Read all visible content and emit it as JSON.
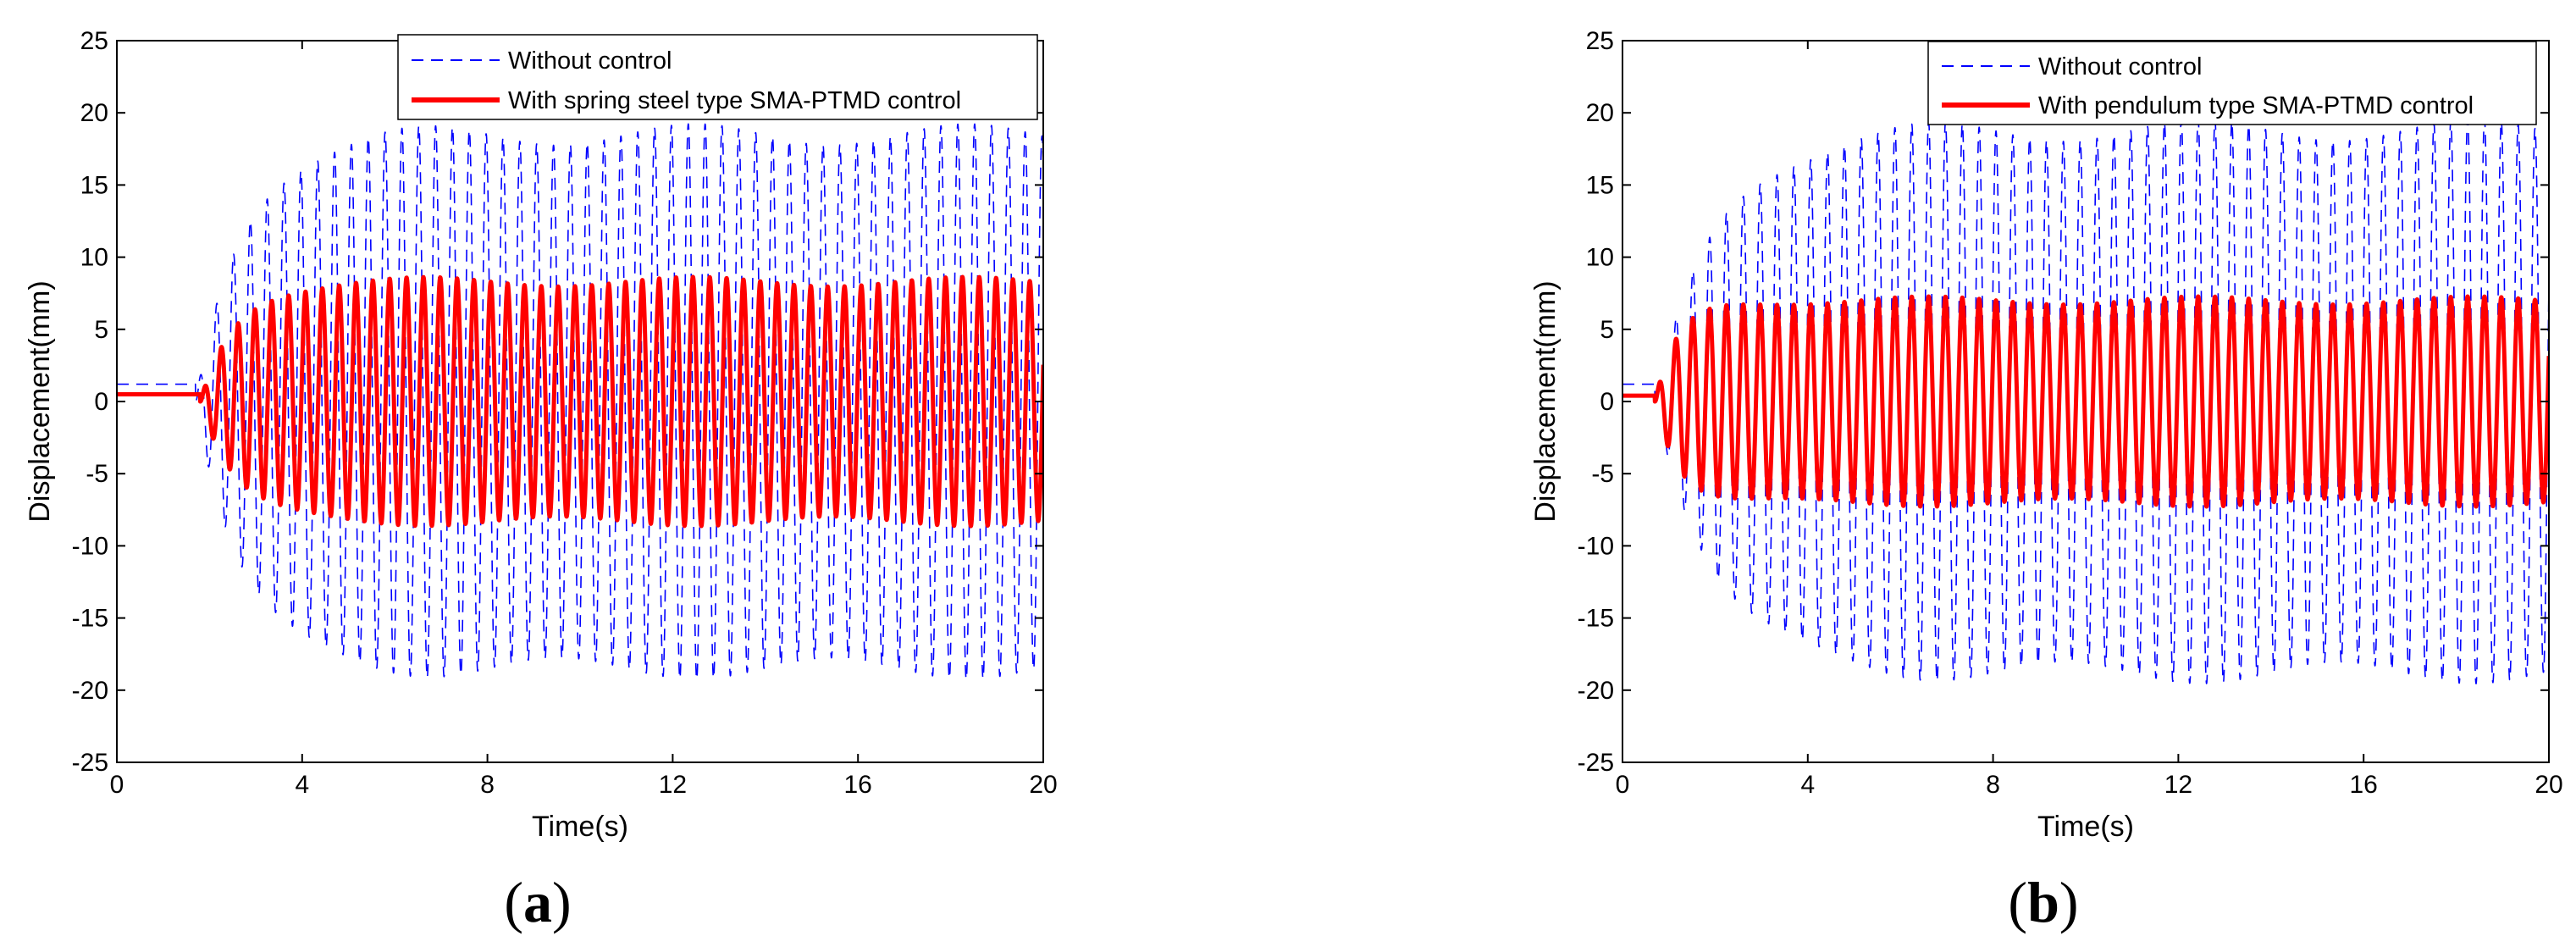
{
  "figure": {
    "panels": [
      {
        "caption_open": "(",
        "caption_letter": "a",
        "caption_close": ")"
      },
      {
        "caption_open": "(",
        "caption_letter": "b",
        "caption_close": ")"
      }
    ]
  },
  "chart_data": [
    {
      "type": "line",
      "title": "",
      "xlabel": "Time(s)",
      "ylabel": "Displacement(mm)",
      "xlim": [
        0,
        20
      ],
      "ylim": [
        -25,
        25
      ],
      "xticks": [
        0,
        4,
        8,
        12,
        16,
        20
      ],
      "yticks": [
        -25,
        -20,
        -15,
        -10,
        -5,
        0,
        5,
        10,
        15,
        20,
        25
      ],
      "legend_position": "top-right",
      "series": [
        {
          "name": "Without control",
          "style": "dashed",
          "color": "#0000ff",
          "model": {
            "initial_offset": 1.2,
            "onset_s": 1.7,
            "steady_amplitude": 18.5,
            "growth_tau_s": 1.0,
            "frequency_hz": 2.75
          }
        },
        {
          "name": "With spring steel type SMA-PTMD control",
          "style": "solid",
          "color": "#ff0000",
          "model": {
            "initial_offset": 0.5,
            "onset_s": 1.8,
            "steady_amplitude": 8.3,
            "growth_tau_s": 0.75,
            "frequency_hz": 2.75
          }
        }
      ]
    },
    {
      "type": "line",
      "title": "",
      "xlabel": "Time(s)",
      "ylabel": "Displacement(mm)",
      "xlim": [
        0,
        20
      ],
      "ylim": [
        -25,
        25
      ],
      "xticks": [
        0,
        4,
        8,
        12,
        16,
        20
      ],
      "yticks": [
        -25,
        -20,
        -15,
        -10,
        -5,
        0,
        5,
        10,
        15,
        20,
        25
      ],
      "legend_position": "top-right",
      "series": [
        {
          "name": "Without control",
          "style": "dashed",
          "color": "#0000ff",
          "model": {
            "initial_offset": 1.2,
            "onset_s": 0.7,
            "steady_amplitude": 18.8,
            "growth_tau_s": 1.3,
            "frequency_hz": 2.75
          }
        },
        {
          "name": "With pendulum type SMA-PTMD control",
          "style": "solid",
          "color": "#ff0000",
          "model": {
            "initial_offset": 0.4,
            "onset_s": 0.7,
            "steady_amplitude": 7.0,
            "growth_tau_s": 0.5,
            "frequency_hz": 2.75
          }
        }
      ]
    }
  ]
}
